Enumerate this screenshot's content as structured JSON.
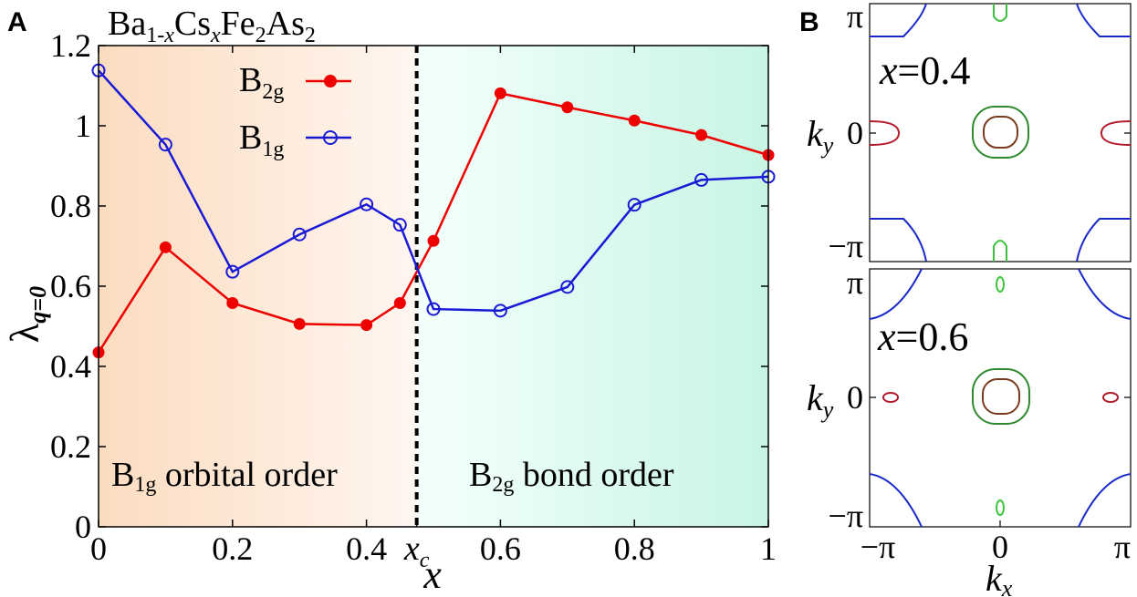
{
  "panel_labels": {
    "a": "A",
    "b": "B"
  },
  "chart_data": [
    {
      "type": "line",
      "title": "Ba1-xCsxFe2As2",
      "title_parts": {
        "base1": "Ba",
        "sub1": "1-",
        "sub1_x": "x",
        "base2": "Cs",
        "sub2": "x",
        "base3": "Fe",
        "sub3": "2",
        "base4": "As",
        "sub4": "2"
      },
      "ylabel": "λq=0",
      "ylabel_parts": {
        "base": "λ",
        "sub": "q=0"
      },
      "xlabel": "x",
      "xlim": [
        0,
        1
      ],
      "ylim": [
        0,
        1.2
      ],
      "xticks": [
        {
          "value": 0,
          "label": "0"
        },
        {
          "value": 0.2,
          "label": "0.2"
        },
        {
          "value": 0.4,
          "label": "0.4"
        },
        {
          "value": 0.6,
          "label": "0.6"
        },
        {
          "value": 0.8,
          "label": "0.8"
        },
        {
          "value": 1,
          "label": "1"
        }
      ],
      "xc": {
        "value": 0.475,
        "label_base": "x",
        "label_sub": "c"
      },
      "yticks": [
        {
          "value": 0,
          "label": "0"
        },
        {
          "value": 0.2,
          "label": "0.2"
        },
        {
          "value": 0.4,
          "label": "0.4"
        },
        {
          "value": 0.6,
          "label": "0.6"
        },
        {
          "value": 0.8,
          "label": "0.8"
        },
        {
          "value": 1,
          "label": "1"
        },
        {
          "value": 1.2,
          "label": "1.2"
        }
      ],
      "legend_position": "top-center",
      "series": [
        {
          "name": "B2g",
          "name_base": "B",
          "name_sub": "2g",
          "color": "#ee0000",
          "marker": "filled-circle",
          "x": [
            0,
            0.1,
            0.2,
            0.3,
            0.4,
            0.45,
            0.5,
            0.6,
            0.7,
            0.8,
            0.9,
            1.0
          ],
          "y": [
            0.435,
            0.697,
            0.558,
            0.506,
            0.503,
            0.558,
            0.713,
            1.081,
            1.046,
            1.013,
            0.977,
            0.927
          ]
        },
        {
          "name": "B1g",
          "name_base": "B",
          "name_sub": "1g",
          "color": "#1a1ad6",
          "marker": "open-circle",
          "x": [
            0,
            0.1,
            0.2,
            0.3,
            0.4,
            0.45,
            0.5,
            0.6,
            0.7,
            0.8,
            0.9,
            1.0
          ],
          "y": [
            1.138,
            0.953,
            0.636,
            0.729,
            0.804,
            0.753,
            0.543,
            0.539,
            0.598,
            0.803,
            0.865,
            0.873
          ]
        }
      ],
      "regions": [
        {
          "label": "B1g orbital order",
          "label_base": "B",
          "label_sub": "1g",
          "label_rest": " orbital order",
          "color": "#fbdcc0",
          "x_range": [
            0,
            0.475
          ]
        },
        {
          "label": "B2g bond order",
          "label_base": "B",
          "label_sub": "2g",
          "label_rest": " bond order",
          "color": "#c8f5e4",
          "x_range": [
            0.475,
            1
          ]
        }
      ]
    },
    {
      "type": "contour",
      "panels": [
        {
          "annotation": "x=0.4",
          "annotation_var": "x",
          "annotation_rest": "=0.4"
        },
        {
          "annotation": "x=0.6",
          "annotation_var": "x",
          "annotation_rest": "=0.6"
        }
      ],
      "xlabel": "kx",
      "xlabel_parts": {
        "base": "k",
        "sub": "x"
      },
      "ylabel": "ky",
      "ylabel_parts": {
        "base": "k",
        "sub": "y"
      },
      "xticks": [
        "−π",
        "0",
        "π"
      ],
      "yticks": [
        "−π",
        "0",
        "π"
      ],
      "colors": {
        "outer": "#1a2ac8",
        "center_red": "#b21c2c",
        "center_green": "#3dc23d"
      }
    }
  ]
}
